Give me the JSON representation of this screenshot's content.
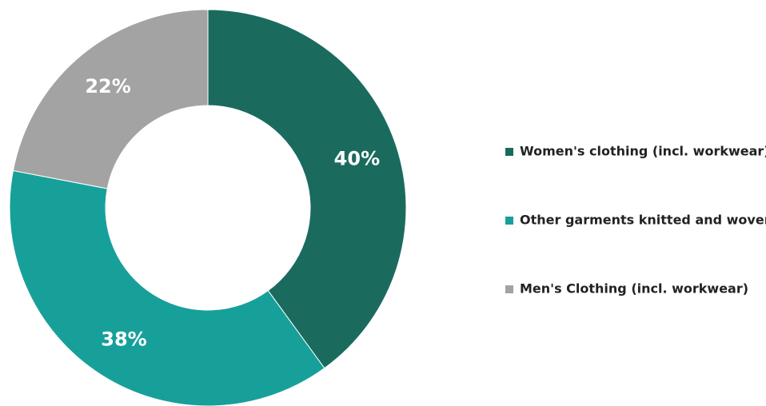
{
  "chart_data": {
    "type": "pie",
    "donut": true,
    "title": "",
    "legend_position": "right",
    "slices": [
      {
        "label": "Women's clothing (incl. workwear)",
        "value": 40,
        "display": "40%",
        "color": "#1a6b5e"
      },
      {
        "label": "Other garments knitted and woven",
        "value": 38,
        "display": "38%",
        "color": "#17a09a"
      },
      {
        "label": "Men's Clothing (incl. workwear)",
        "value": 22,
        "display": "22%",
        "color": "#a3a3a3"
      }
    ]
  }
}
